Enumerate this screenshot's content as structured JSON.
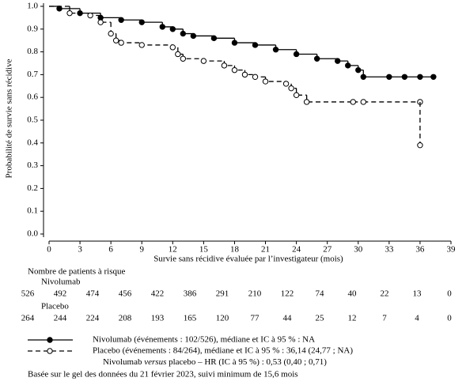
{
  "chart_data": {
    "type": "step",
    "y_label": "Probabilité de survie sans récidive",
    "x_label": "Survie sans récidive évaluée par l’investigateur (mois)",
    "xlim": [
      0,
      39
    ],
    "xticks": [
      0,
      3,
      6,
      9,
      12,
      15,
      18,
      21,
      24,
      27,
      30,
      33,
      36,
      39
    ],
    "ylim": [
      0,
      1
    ],
    "yticks": [
      {
        "value": 0,
        "label": "0.0"
      },
      0.1,
      0.2,
      0.3,
      0.4,
      0.5,
      0.6,
      0.7,
      0.8,
      0.9,
      {
        "value": 1,
        "label": "1.0"
      }
    ],
    "series": [
      {
        "name": "Nivolumab (événements : 102/526), médiane et IC à 95 % : NA",
        "color": "#000000",
        "dashed": false,
        "marker": "filled",
        "x": [
          0,
          1,
          3,
          5,
          7,
          9,
          11,
          12,
          13,
          14,
          16,
          18,
          20,
          22,
          24,
          26,
          28,
          29,
          30,
          30.5,
          33,
          34.5,
          36,
          37.3
        ],
        "values": [
          1.0,
          0.99,
          0.97,
          0.95,
          0.94,
          0.93,
          0.91,
          0.9,
          0.88,
          0.87,
          0.86,
          0.84,
          0.83,
          0.81,
          0.79,
          0.77,
          0.76,
          0.74,
          0.72,
          0.69,
          0.69,
          0.69,
          0.69,
          0.69
        ]
      },
      {
        "name": "Placebo (événements : 84/264), médiane et IC à 95 % : 36,14 (24,77 ; NA)",
        "color": "#000000",
        "dashed": true,
        "marker": "open",
        "x": [
          0,
          2,
          4,
          5,
          6,
          6.5,
          7,
          9,
          12,
          12.5,
          13,
          15,
          17,
          18,
          19,
          20,
          21,
          23,
          23.5,
          24,
          25,
          29.5,
          30.5,
          36,
          36
        ],
        "values": [
          1.0,
          0.97,
          0.96,
          0.93,
          0.88,
          0.85,
          0.84,
          0.83,
          0.82,
          0.79,
          0.77,
          0.76,
          0.74,
          0.72,
          0.7,
          0.69,
          0.67,
          0.66,
          0.64,
          0.61,
          0.58,
          0.58,
          0.58,
          0.58,
          0.39
        ]
      }
    ],
    "hr_text": [
      "Nivolumab ",
      "versus",
      " placebo – HR (IC à 95 %) : 0,53 (0,40 ; 0,71)"
    ],
    "footnote": "Basée sur le gel des données du 21 février 2023, suivi minimum de 15,6 mois",
    "risk_table": {
      "title": "Nombre de patients à risque",
      "groups": [
        {
          "name": "Nivolumab",
          "values": [
            526,
            492,
            474,
            456,
            422,
            386,
            291,
            210,
            122,
            74,
            40,
            22,
            13,
            0
          ]
        },
        {
          "name": "Placebo",
          "values": [
            264,
            244,
            224,
            208,
            193,
            165,
            120,
            77,
            44,
            25,
            12,
            7,
            4,
            0
          ]
        }
      ]
    }
  }
}
